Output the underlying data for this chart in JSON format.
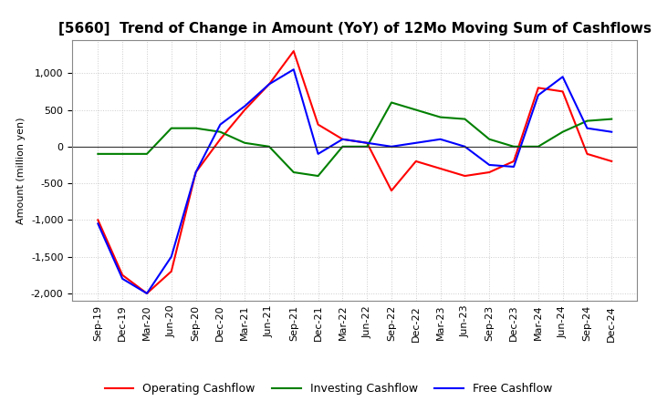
{
  "title": "[5660]  Trend of Change in Amount (YoY) of 12Mo Moving Sum of Cashflows",
  "ylabel": "Amount (million yen)",
  "x_labels": [
    "Sep-19",
    "Dec-19",
    "Mar-20",
    "Jun-20",
    "Sep-20",
    "Dec-20",
    "Mar-21",
    "Jun-21",
    "Sep-21",
    "Dec-21",
    "Mar-22",
    "Jun-22",
    "Sep-22",
    "Dec-22",
    "Mar-23",
    "Jun-23",
    "Sep-23",
    "Dec-23",
    "Mar-24",
    "Jun-24",
    "Sep-24",
    "Dec-24"
  ],
  "operating": [
    -1000,
    -1750,
    -2000,
    -1700,
    -350,
    100,
    500,
    850,
    1300,
    300,
    100,
    50,
    -600,
    -200,
    -300,
    -400,
    -350,
    -200,
    800,
    750,
    -100,
    -200
  ],
  "investing": [
    -100,
    -100,
    -100,
    250,
    250,
    200,
    50,
    0,
    -350,
    -400,
    0,
    0,
    600,
    500,
    400,
    375,
    100,
    0,
    0,
    200,
    350,
    375
  ],
  "free": [
    -1050,
    -1800,
    -2000,
    -1500,
    -350,
    300,
    550,
    850,
    1050,
    -100,
    100,
    50,
    0,
    50,
    100,
    0,
    -250,
    -275,
    700,
    950,
    250,
    200
  ],
  "ylim": [
    -2100,
    1450
  ],
  "yticks": [
    -2000,
    -1500,
    -1000,
    -500,
    0,
    500,
    1000
  ],
  "operating_color": "#ff0000",
  "investing_color": "#008000",
  "free_color": "#0000ff",
  "grid_color": "#cccccc",
  "grid_style": "dotted",
  "background_color": "#ffffff",
  "title_fontsize": 11,
  "axis_fontsize": 8,
  "legend_fontsize": 9
}
